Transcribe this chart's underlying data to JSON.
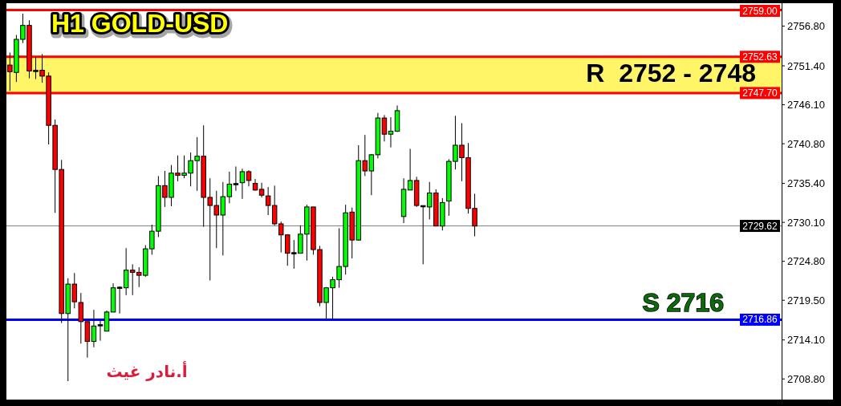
{
  "chart_data": {
    "type": "candlestick",
    "title": "H1 GOLD-USD",
    "categories": [
      null,
      null,
      null,
      null,
      null,
      null,
      null,
      null,
      null,
      null,
      null,
      null,
      null,
      null,
      null,
      null,
      null,
      null,
      null,
      null,
      null,
      null,
      null,
      null,
      null,
      null,
      null,
      null,
      null,
      null,
      null,
      null,
      null,
      null,
      null,
      null,
      null,
      null,
      null,
      null,
      null,
      null,
      null,
      null,
      null,
      null,
      null,
      null,
      null,
      null,
      null,
      null,
      null,
      null,
      null,
      null,
      null,
      null,
      null,
      null,
      null,
      null,
      null,
      null,
      null,
      null,
      null,
      null,
      null,
      null,
      null,
      null,
      null,
      null,
      null,
      null,
      null,
      null,
      null,
      null,
      null,
      null,
      null,
      null,
      null,
      null,
      null,
      null,
      null,
      null,
      null,
      null,
      null,
      null,
      null,
      null,
      null,
      null,
      null,
      null,
      null,
      null,
      null,
      null,
      null,
      null,
      null,
      null,
      null,
      null,
      null,
      null,
      null,
      null,
      null,
      null,
      null,
      null,
      null,
      null
    ],
    "ohlc": [
      [
        2751.5,
        2753.2,
        2748.0,
        2750.6
      ],
      [
        2750.5,
        2755.6,
        2749.2,
        2755.0
      ],
      [
        2755.0,
        2758.5,
        2754.5,
        2756.9
      ],
      [
        2756.9,
        2757.6,
        2749.7,
        2750.7
      ],
      [
        2750.7,
        2752.6,
        2749.6,
        2750.7
      ],
      [
        2750.8,
        2753.0,
        2749.1,
        2750.0
      ],
      [
        2750.0,
        2750.5,
        2740.7,
        2743.3
      ],
      [
        2743.3,
        2744.1,
        2731.4,
        2737.3
      ],
      [
        2737.3,
        2738.6,
        2716.4,
        2717.7
      ],
      [
        2717.7,
        2722.5,
        2708.5,
        2721.7
      ],
      [
        2721.7,
        2723.2,
        2718.4,
        2719.3
      ],
      [
        2719.2,
        2720.5,
        2713.6,
        2716.6
      ],
      [
        2716.6,
        2716.6,
        2711.7,
        2713.9
      ],
      [
        2713.9,
        2718.2,
        2713.1,
        2716.0
      ],
      [
        2716.1,
        2716.7,
        2714.0,
        2716.1
      ],
      [
        2715.3,
        2718.1,
        2715.3,
        2717.9
      ],
      [
        2717.9,
        2721.8,
        2717.9,
        2721.2
      ],
      [
        2721.2,
        2721.4,
        2717.7,
        2721.2
      ],
      [
        2721.2,
        2726.6,
        2720.2,
        2723.6
      ],
      [
        2723.6,
        2724.4,
        2720.2,
        2723.3
      ],
      [
        2723.3,
        2724.0,
        2721.3,
        2722.9
      ],
      [
        2722.9,
        2727.0,
        2722.7,
        2726.5
      ],
      [
        2726.5,
        2729.8,
        2725.7,
        2728.9
      ],
      [
        2728.9,
        2736.4,
        2728.1,
        2735.1
      ],
      [
        2735.1,
        2737.1,
        2732.2,
        2733.5
      ],
      [
        2733.5,
        2737.9,
        2732.3,
        2736.8
      ],
      [
        2736.8,
        2739.2,
        2735.7,
        2736.5
      ],
      [
        2736.5,
        2739.2,
        2736.1,
        2736.8
      ],
      [
        2736.8,
        2739.6,
        2735.0,
        2738.5
      ],
      [
        2738.5,
        2741.7,
        2734.4,
        2739.1
      ],
      [
        2739.1,
        2743.3,
        2729.5,
        2733.5
      ],
      [
        2733.5,
        2736.1,
        2722.2,
        2732.4
      ],
      [
        2732.4,
        2734.4,
        2726.6,
        2731.1
      ],
      [
        2731.1,
        2735.6,
        2725.6,
        2733.6
      ],
      [
        2733.6,
        2737.0,
        2732.7,
        2735.3
      ],
      [
        2735.3,
        2737.7,
        2734.4,
        2735.3
      ],
      [
        2735.5,
        2737.4,
        2733.3,
        2737.0
      ],
      [
        2737.0,
        2737.2,
        2735.0,
        2735.8
      ],
      [
        2735.4,
        2736.0,
        2734.4,
        2734.5
      ],
      [
        2734.6,
        2735.5,
        2733.5,
        2733.8
      ],
      [
        2733.7,
        2734.9,
        2731.1,
        2732.4
      ],
      [
        2732.4,
        2735.1,
        2729.7,
        2729.9
      ],
      [
        2729.9,
        2730.2,
        2726.0,
        2728.4
      ],
      [
        2728.4,
        2728.4,
        2724.2,
        2725.9
      ],
      [
        2725.9,
        2727.7,
        2723.8,
        2725.9
      ],
      [
        2725.9,
        2729.7,
        2725.9,
        2728.5
      ],
      [
        2728.5,
        2732.5,
        2724.9,
        2732.2
      ],
      [
        2732.2,
        2732.2,
        2725.7,
        2726.4
      ],
      [
        2726.4,
        2726.9,
        2718.7,
        2719.2
      ],
      [
        2719.2,
        2721.3,
        2716.9,
        2721.2
      ],
      [
        2721.2,
        2722.7,
        2717.0,
        2722.3
      ],
      [
        2722.3,
        2729.3,
        2721.2,
        2724.1
      ],
      [
        2724.1,
        2732.5,
        2723.0,
        2731.4
      ],
      [
        2731.5,
        2732.1,
        2725.2,
        2727.7
      ],
      [
        2727.7,
        2740.6,
        2727.6,
        2738.5
      ],
      [
        2738.5,
        2742.0,
        2736.4,
        2737.1
      ],
      [
        2737.1,
        2739.4,
        2733.8,
        2739.3
      ],
      [
        2739.3,
        2745.0,
        2738.8,
        2744.3
      ],
      [
        2744.3,
        2744.7,
        2741.1,
        2742.1
      ],
      [
        2742.1,
        2744.4,
        2740.3,
        2742.5
      ],
      [
        2742.5,
        2746.0,
        2742.4,
        2745.3
      ],
      [
        2730.9,
        2736.1,
        2730.0,
        2734.6
      ],
      [
        2734.5,
        2740.1,
        2734.5,
        2735.8
      ],
      [
        2735.8,
        2736.3,
        2732.2,
        2732.4
      ],
      [
        2732.3,
        2732.3,
        2724.4,
        2732.3
      ],
      [
        2732.2,
        2735.6,
        2730.5,
        2734.1
      ],
      [
        2734.1,
        2734.6,
        2729.6,
        2729.6
      ],
      [
        2729.6,
        2733.4,
        2729.0,
        2732.8
      ],
      [
        2733.0,
        2738.7,
        2731.0,
        2738.4
      ],
      [
        2738.4,
        2744.6,
        2737.3,
        2740.6
      ],
      [
        2740.6,
        2743.6,
        2735.7,
        2738.9
      ],
      [
        2738.9,
        2740.9,
        2731.3,
        2732.0
      ],
      [
        2732.0,
        2734.0,
        2728.2,
        2729.6
      ],
      null,
      null,
      null,
      null,
      null,
      null,
      null,
      null,
      null,
      null,
      null,
      null,
      null,
      null,
      null,
      null,
      null,
      null,
      null,
      null,
      null,
      null,
      null,
      null,
      null,
      null,
      null,
      null,
      null,
      null,
      null,
      null,
      null,
      null,
      null,
      null,
      null,
      null,
      null,
      null,
      null,
      null,
      null,
      null,
      null,
      null,
      null
    ],
    "colors": [
      "#ff0000",
      "#00ff00",
      "#00ff00",
      "#ff0000",
      "#000000",
      "#ff0000",
      "#ff0000",
      "#ff0000",
      "#ff0000",
      "#00ff00",
      "#ff0000",
      "#ff0000",
      "#ff0000",
      "#00ff00",
      "#000000",
      "#00ff00",
      "#00ff00",
      "#000000",
      "#00ff00",
      "#ff0000",
      "#ff0000",
      "#00ff00",
      "#00ff00",
      "#00ff00",
      "#ff0000",
      "#00ff00",
      "#ff0000",
      "#00ff00",
      "#00ff00",
      "#00ff00",
      "#ff0000",
      "#ff0000",
      "#ff0000",
      "#00ff00",
      "#00ff00",
      "#000000",
      "#00ff00",
      "#ff0000",
      "#ff0000",
      "#ff0000",
      "#ff0000",
      "#ff0000",
      "#ff0000",
      "#ff0000",
      "#000000",
      "#00ff00",
      "#00ff00",
      "#ff0000",
      "#ff0000",
      "#00ff00",
      "#00ff00",
      "#00ff00",
      "#00ff00",
      "#ff0000",
      "#00ff00",
      "#ff0000",
      "#00ff00",
      "#00ff00",
      "#ff0000",
      "#00ff00",
      "#00ff00",
      "#00ff00",
      "#00ff00",
      "#ff0000",
      "#000000",
      "#00ff00",
      "#ff0000",
      "#00ff00",
      "#00ff00",
      "#00ff00",
      "#ff0000",
      "#ff0000",
      "#ff0000",
      null,
      null,
      null,
      null,
      null,
      null,
      null,
      null,
      null,
      null,
      null,
      null,
      null,
      null,
      null,
      null,
      null,
      null,
      null,
      null,
      null,
      null,
      null,
      null,
      null,
      null,
      null,
      null,
      null,
      null,
      null,
      null,
      null,
      null,
      null,
      null,
      null,
      null,
      null,
      null,
      null,
      null,
      null,
      null,
      null,
      null,
      null
    ],
    "ylim": [
      2706.1,
      2759.7
    ],
    "yticks": [
      {
        "value": 2708.8,
        "label": "2708.80"
      },
      {
        "value": 2714.1,
        "label": "2714.10"
      },
      {
        "value": 2719.5,
        "label": "2719.50"
      },
      {
        "value": 2724.8,
        "label": "2724.80"
      },
      {
        "value": 2730.1,
        "label": "2730.10"
      },
      {
        "value": 2735.4,
        "label": "2735.40"
      },
      {
        "value": 2740.8,
        "label": "2740.80"
      },
      {
        "value": 2746.1,
        "label": "2746.10"
      },
      {
        "value": 2751.4,
        "label": "2751.40"
      },
      {
        "value": 2756.8,
        "label": "2756.80"
      }
    ],
    "tick_labels": "y",
    "bands": [
      {
        "axis": "y",
        "from": 2747.7,
        "to": 2752.63,
        "color": "#fff566"
      }
    ],
    "ref_lines": [
      {
        "axis": "y",
        "value": 2759.0,
        "label": "2759.00",
        "color": "#ff0000"
      },
      {
        "axis": "y",
        "value": 2752.63,
        "label": "2752.63",
        "color": "#ff0000"
      },
      {
        "axis": "y",
        "value": 2747.7,
        "label": "2747.70",
        "color": "#ff0000"
      },
      {
        "axis": "y",
        "value": 2729.62,
        "label": "2729.62",
        "color": "#808080"
      },
      {
        "axis": "y",
        "value": 2716.86,
        "label": "2716.86",
        "color": "#0000ff"
      }
    ],
    "annotations": [
      "R  2752 - 2748",
      "S 2716",
      "أ.نادر غيث"
    ]
  }
}
